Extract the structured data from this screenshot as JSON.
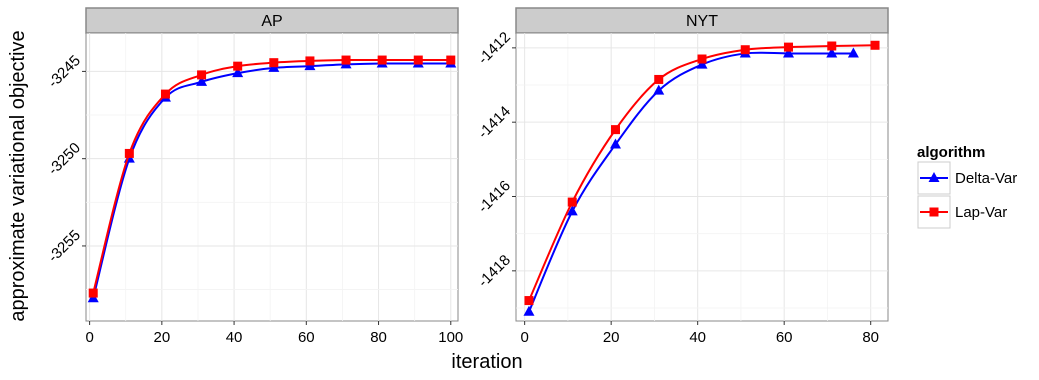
{
  "chart_data": {
    "type": "line",
    "xlabel": "iteration",
    "ylabel": "approximate variational objective",
    "legend": {
      "title": "algorithm",
      "placement": "right",
      "entries": [
        {
          "name": "Delta-Var",
          "color": "#0000ff",
          "marker": "triangle"
        },
        {
          "name": "Lap-Var",
          "color": "#ff0000",
          "marker": "square"
        }
      ]
    },
    "grid": true,
    "panels": [
      {
        "title": "AP",
        "xlim": [
          -1,
          102
        ],
        "ylim": [
          -3259.3,
          -3242.8
        ],
        "xticks": [
          0,
          20,
          40,
          60,
          80,
          100
        ],
        "xtick_labels": [
          "0",
          "20",
          "40",
          "60",
          "80",
          "100"
        ],
        "yticks": [
          -3255,
          -3250,
          -3245
        ],
        "ytick_labels": [
          "-3255",
          "-3250",
          "-3245"
        ],
        "series": [
          {
            "name": "Delta-Var",
            "x": [
              1,
              11,
              21,
              31,
              41,
              51,
              61,
              71,
              81,
              91,
              100
            ],
            "y": [
              -3258.0,
              -3250.0,
              -3246.5,
              -3245.6,
              -3245.1,
              -3244.8,
              -3244.7,
              -3244.6,
              -3244.55,
              -3244.55,
              -3244.55
            ]
          },
          {
            "name": "Lap-Var",
            "x": [
              1,
              11,
              21,
              31,
              41,
              51,
              61,
              71,
              81,
              91,
              100
            ],
            "y": [
              -3257.7,
              -3249.7,
              -3246.3,
              -3245.2,
              -3244.7,
              -3244.5,
              -3244.4,
              -3244.35,
              -3244.35,
              -3244.35,
              -3244.35
            ]
          }
        ]
      },
      {
        "title": "NYT",
        "xlim": [
          -2,
          84
        ],
        "ylim": [
          -1419.35,
          -1411.6
        ],
        "xticks": [
          0,
          20,
          40,
          60,
          80
        ],
        "xtick_labels": [
          "0",
          "20",
          "40",
          "60",
          "80"
        ],
        "yticks": [
          -1418,
          -1416,
          -1414,
          -1412
        ],
        "ytick_labels": [
          "-1418",
          "-1416",
          "-1414",
          "-1412"
        ],
        "series": [
          {
            "name": "Delta-Var",
            "x": [
              1,
              11,
              21,
              31,
              41,
              51,
              61,
              71,
              76
            ],
            "y": [
              -1419.1,
              -1416.4,
              -1414.6,
              -1413.15,
              -1412.45,
              -1412.15,
              -1412.15,
              -1412.15,
              -1412.15
            ]
          },
          {
            "name": "Lap-Var",
            "x": [
              1,
              11,
              21,
              31,
              41,
              51,
              61,
              71,
              81
            ],
            "y": [
              -1418.8,
              -1416.15,
              -1414.2,
              -1412.85,
              -1412.3,
              -1412.05,
              -1411.98,
              -1411.95,
              -1411.93
            ]
          }
        ]
      }
    ]
  }
}
